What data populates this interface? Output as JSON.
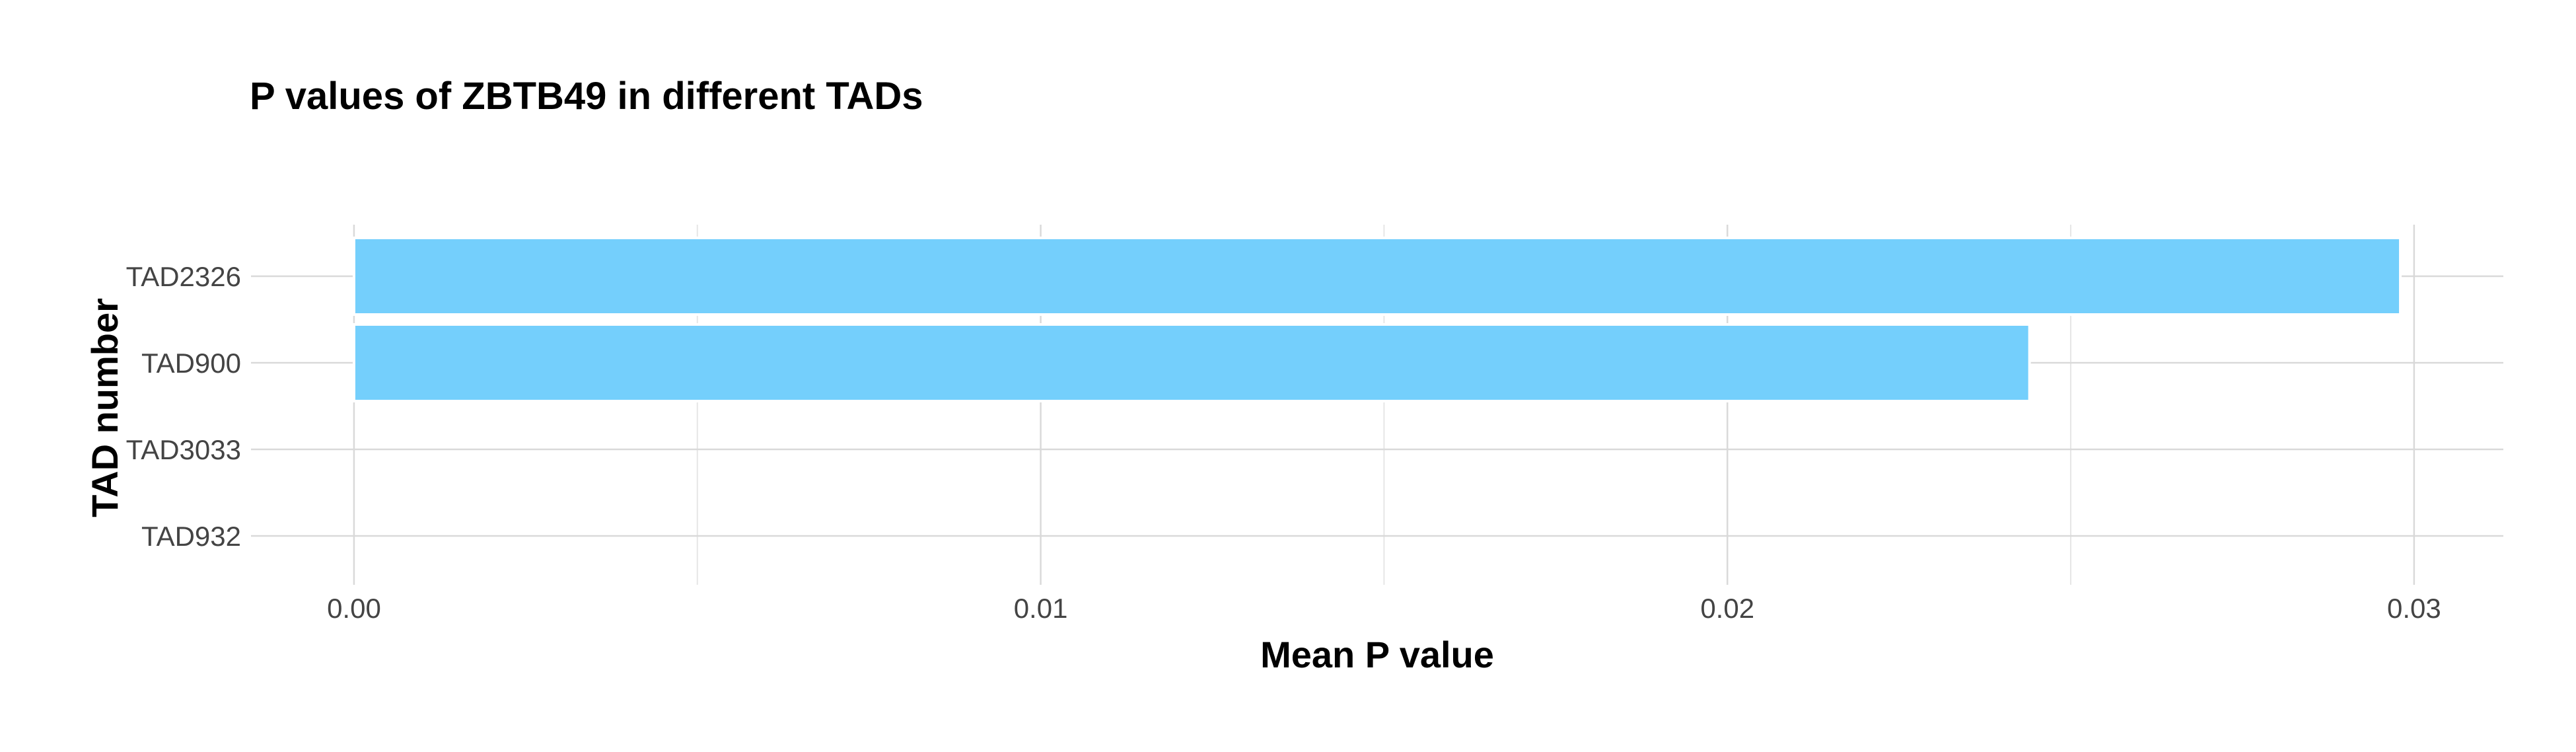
{
  "chart_data": {
    "type": "bar",
    "orientation": "horizontal",
    "title": "P values of ZBTB49 in different TADs",
    "xlabel": "Mean P value",
    "ylabel": "TAD number",
    "categories": [
      "TAD2326",
      "TAD900",
      "TAD3033",
      "TAD932"
    ],
    "values": [
      0.0298,
      0.0244,
      0.0,
      0.0
    ],
    "xlim": [
      -0.0015,
      0.0313
    ],
    "xticks": [
      0.0,
      0.01,
      0.02,
      0.03
    ],
    "xtick_labels": [
      "0.00",
      "0.01",
      "0.02",
      "0.03"
    ],
    "grid": true,
    "bar_color": "#74CFFC"
  }
}
